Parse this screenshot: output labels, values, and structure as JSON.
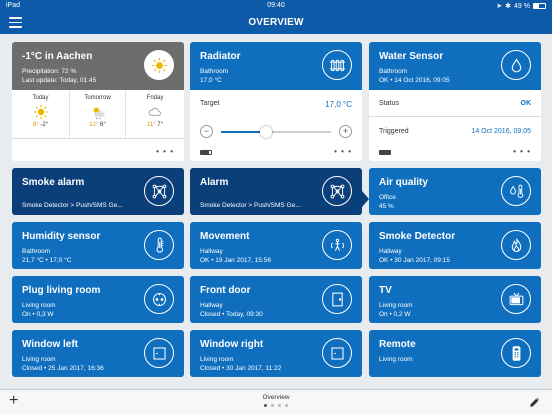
{
  "statusbar": {
    "device": "iPad",
    "time": "09:40",
    "battery": "49 %",
    "battery_level": 0.49
  },
  "navbar": {
    "title": "OVERVIEW"
  },
  "weather": {
    "title": "-1°C in Aachen",
    "precipitation": "Precipitation: 72 %",
    "last_update": "Last update: Today, 01:45",
    "forecast": [
      {
        "day": "Today",
        "hi": "8°",
        "lo": "-2°",
        "icon": "sun-icon"
      },
      {
        "day": "Tomorrow",
        "hi": "12°",
        "lo": "6°",
        "icon": "sun-rain-icon"
      },
      {
        "day": "Friday",
        "hi": "11°",
        "lo": "7°",
        "icon": "cloud-icon"
      }
    ]
  },
  "radiator": {
    "title": "Radiator",
    "room": "Bathroom",
    "temp": "17,0 °C",
    "target_label": "Target",
    "target_value": "17,0 °C",
    "slider_level": 0.41,
    "minus": "−",
    "plus": "+"
  },
  "water": {
    "title": "Water Sensor",
    "sub": "Bathroom",
    "sub2": "OK • 14 Oct 2016, 09:05",
    "status_label": "Status",
    "status_value": "OK",
    "triggered_label": "Triggered",
    "triggered_value": "14 Oct 2016, 09:05"
  },
  "more": "• • •",
  "tiles": [
    {
      "title": "Smoke alarm",
      "sub1": "",
      "sub2": "Smoke Detector > Push/SMS Ge...",
      "icon": "network-icon",
      "style": "navy"
    },
    {
      "title": "Alarm",
      "sub1": "",
      "sub2": "Smoke Detector > Push/SMS Ge...",
      "icon": "network-icon",
      "style": "navy"
    },
    {
      "title": "Air quality",
      "sub1": "Office",
      "sub2": "45 %",
      "icon": "humidity-thermometer-icon",
      "style": "blue"
    },
    {
      "title": "Humidity sensor",
      "sub1": "Bathroom",
      "sub2": "21,7 °C • 17,0 °C",
      "icon": "thermometer-icon",
      "style": "blue"
    },
    {
      "title": "Movement",
      "sub1": "Hallway",
      "sub2": "OK • 19 Jan 2017, 15:56",
      "icon": "motion-icon",
      "style": "blue"
    },
    {
      "title": "Smoke Detector",
      "sub1": "Hallway",
      "sub2": "OK • 30 Jan 2017, 09:15",
      "icon": "flame-icon",
      "style": "blue"
    },
    {
      "title": "Plug living room",
      "sub1": "Living room",
      "sub2": "On • 0,3 W",
      "icon": "plug-icon",
      "style": "blue"
    },
    {
      "title": "Front door",
      "sub1": "Hallway",
      "sub2": "Closed • Today, 09:30",
      "icon": "door-icon",
      "style": "blue"
    },
    {
      "title": "TV",
      "sub1": "Living room",
      "sub2": "On • 0,2 W",
      "icon": "tv-icon",
      "style": "blue"
    },
    {
      "title": "Window left",
      "sub1": "Living room",
      "sub2": "Closed • 25 Jan 2017, 16:36",
      "icon": "window-icon",
      "style": "blue"
    },
    {
      "title": "Window right",
      "sub1": "Living room",
      "sub2": "Closed • 30 Jan 2017, 11:22",
      "icon": "window-icon",
      "style": "blue"
    },
    {
      "title": "Remote",
      "sub1": "Living room",
      "sub2": "",
      "icon": "remote-icon",
      "style": "blue"
    }
  ],
  "bottombar": {
    "label": "Overview",
    "pages": 4,
    "current_page": 1
  },
  "colors": {
    "primary": "#0f6fbe",
    "navy": "#0b3f79",
    "header": "#0d5aa8",
    "weather_head": "#6d6d6d",
    "sun": "#f0b400"
  }
}
